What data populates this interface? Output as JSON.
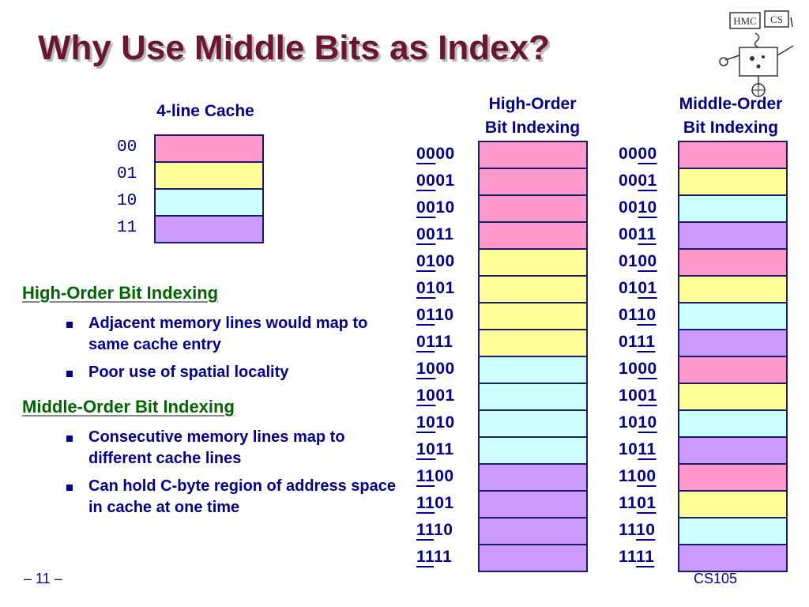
{
  "slide": {
    "title": "Why Use Middle Bits as Index?",
    "footer_left": "– 11 –",
    "footer_right": "CS105"
  },
  "logo": {
    "text_left": "HMC",
    "text_right": "CS"
  },
  "colors": {
    "pink": "#ff99cc",
    "yellow": "#ffff99",
    "cyan": "#ccffff",
    "purple": "#cc99ff",
    "title": "#6b1631",
    "heading_green": "#006400",
    "text_blue": "#00008a"
  },
  "cache": {
    "title": "4-line Cache",
    "lines": [
      {
        "label": "00",
        "color": "pink"
      },
      {
        "label": "01",
        "color": "yellow"
      },
      {
        "label": "10",
        "color": "cyan"
      },
      {
        "label": "11",
        "color": "purple"
      }
    ]
  },
  "high_order": {
    "title_line1": "High-Order",
    "title_line2": "Bit Indexing",
    "rows": [
      {
        "address": "0000",
        "index_bits": "high",
        "color": "pink"
      },
      {
        "address": "0001",
        "index_bits": "high",
        "color": "pink"
      },
      {
        "address": "0010",
        "index_bits": "high",
        "color": "pink"
      },
      {
        "address": "0011",
        "index_bits": "high",
        "color": "pink"
      },
      {
        "address": "0100",
        "index_bits": "high",
        "color": "yellow"
      },
      {
        "address": "0101",
        "index_bits": "high",
        "color": "yellow"
      },
      {
        "address": "0110",
        "index_bits": "high",
        "color": "yellow"
      },
      {
        "address": "0111",
        "index_bits": "high",
        "color": "yellow"
      },
      {
        "address": "1000",
        "index_bits": "high",
        "color": "cyan"
      },
      {
        "address": "1001",
        "index_bits": "high",
        "color": "cyan"
      },
      {
        "address": "1010",
        "index_bits": "high",
        "color": "cyan"
      },
      {
        "address": "1011",
        "index_bits": "high",
        "color": "cyan"
      },
      {
        "address": "1100",
        "index_bits": "high",
        "color": "purple"
      },
      {
        "address": "1101",
        "index_bits": "high",
        "color": "purple"
      },
      {
        "address": "1110",
        "index_bits": "high",
        "color": "purple"
      },
      {
        "address": "1111",
        "index_bits": "high",
        "color": "purple"
      }
    ]
  },
  "middle_order": {
    "title_line1": "Middle-Order",
    "title_line2": "Bit Indexing",
    "rows": [
      {
        "address": "0000",
        "index_bits": "low",
        "color": "pink"
      },
      {
        "address": "0001",
        "index_bits": "low",
        "color": "yellow"
      },
      {
        "address": "0010",
        "index_bits": "low",
        "color": "cyan"
      },
      {
        "address": "0011",
        "index_bits": "low",
        "color": "purple"
      },
      {
        "address": "0100",
        "index_bits": "low",
        "color": "pink"
      },
      {
        "address": "0101",
        "index_bits": "low",
        "color": "yellow"
      },
      {
        "address": "0110",
        "index_bits": "low",
        "color": "cyan"
      },
      {
        "address": "0111",
        "index_bits": "low",
        "color": "purple"
      },
      {
        "address": "1000",
        "index_bits": "low",
        "color": "pink"
      },
      {
        "address": "1001",
        "index_bits": "low",
        "color": "yellow"
      },
      {
        "address": "1010",
        "index_bits": "low",
        "color": "cyan"
      },
      {
        "address": "1011",
        "index_bits": "low",
        "color": "purple"
      },
      {
        "address": "1100",
        "index_bits": "low",
        "color": "pink"
      },
      {
        "address": "1101",
        "index_bits": "low",
        "color": "yellow"
      },
      {
        "address": "1110",
        "index_bits": "low",
        "color": "cyan"
      },
      {
        "address": "1111",
        "index_bits": "low",
        "color": "purple"
      }
    ]
  },
  "sections": [
    {
      "heading": "High-Order Bit Indexing",
      "bullets": [
        "Adjacent memory lines would map to same cache entry",
        "Poor use of spatial locality"
      ]
    },
    {
      "heading": "Middle-Order Bit Indexing",
      "bullets": [
        "Consecutive memory lines map to different cache lines",
        "Can hold C-byte region of address space in cache at one time"
      ]
    }
  ]
}
